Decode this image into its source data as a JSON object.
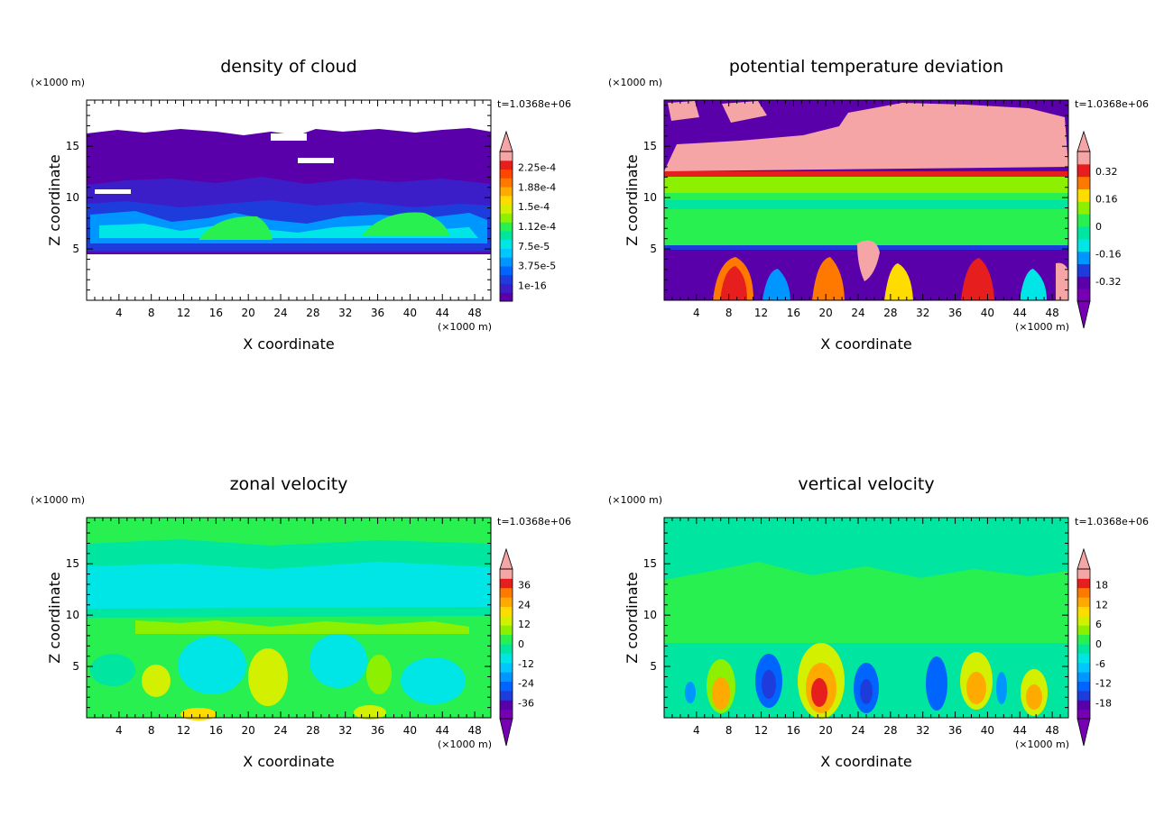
{
  "chart_data": [
    {
      "type": "heatmap",
      "title": "density of cloud",
      "xlabel": "X coordinate",
      "ylabel": "Z coordinate",
      "x_unit": "(×1000 m)",
      "z_unit": "(×1000 m)",
      "time_label": "t=1.0368e+06",
      "xlim": [
        0,
        50
      ],
      "zlim": [
        0,
        19.5
      ],
      "x_ticks": [
        "4",
        "8",
        "12",
        "16",
        "20",
        "24",
        "28",
        "32",
        "36",
        "40",
        "44",
        "48"
      ],
      "z_ticks": [
        "5",
        "10",
        "15"
      ],
      "colorbar": {
        "labels": [
          "1e-16",
          "3.75e-5",
          "7.5e-5",
          "1.12e-4",
          "1.5e-4",
          "1.88e-4",
          "2.25e-4"
        ],
        "upper_arrow": true,
        "lower_arrow": false,
        "colors": [
          "#5a00aa",
          "#3c1ec8",
          "#1e3cdc",
          "#0064ff",
          "#0096ff",
          "#00c8ff",
          "#00e6e6",
          "#00e6a0",
          "#28f050",
          "#8cf000",
          "#d2f000",
          "#ffdc00",
          "#ffaa00",
          "#ff7800",
          "#ff4600",
          "#e61e1e",
          "#f5a5a5"
        ]
      }
    },
    {
      "type": "heatmap",
      "title": "potential temperature deviation",
      "xlabel": "X coordinate",
      "ylabel": "Z coordinate",
      "x_unit": "(×1000 m)",
      "z_unit": "(×1000 m)",
      "time_label": "t=1.0368e+06",
      "xlim": [
        0,
        50
      ],
      "zlim": [
        0,
        19.5
      ],
      "x_ticks": [
        "4",
        "8",
        "12",
        "16",
        "20",
        "24",
        "28",
        "32",
        "36",
        "40",
        "44",
        "48"
      ],
      "z_ticks": [
        "5",
        "10",
        "15"
      ],
      "colorbar": {
        "labels": [
          "-0.32",
          "-0.16",
          "0",
          "0.16",
          "0.32"
        ],
        "upper_arrow": true,
        "lower_arrow": true,
        "colors": [
          "#7800b4",
          "#5a00aa",
          "#1e3cdc",
          "#0096ff",
          "#00e6e6",
          "#00e6a0",
          "#28f050",
          "#8cf000",
          "#ffdc00",
          "#ff7800",
          "#e61e1e",
          "#f5a5a5"
        ]
      }
    },
    {
      "type": "heatmap",
      "title": "zonal velocity",
      "xlabel": "X coordinate",
      "ylabel": "Z coordinate",
      "x_unit": "(×1000 m)",
      "z_unit": "(×1000 m)",
      "time_label": "t=1.0368e+06",
      "xlim": [
        0,
        50
      ],
      "zlim": [
        0,
        19.5
      ],
      "x_ticks": [
        "4",
        "8",
        "12",
        "16",
        "20",
        "24",
        "28",
        "32",
        "36",
        "40",
        "44",
        "48"
      ],
      "z_ticks": [
        "5",
        "10",
        "15"
      ],
      "colorbar": {
        "labels": [
          "-36",
          "-24",
          "-12",
          "0",
          "12",
          "24",
          "36"
        ],
        "upper_arrow": true,
        "lower_arrow": true,
        "colors": [
          "#7800b4",
          "#5a00aa",
          "#1e3cdc",
          "#0064ff",
          "#0096ff",
          "#00c8ff",
          "#00e6e6",
          "#00e6a0",
          "#28f050",
          "#8cf000",
          "#d2f000",
          "#ffdc00",
          "#ffaa00",
          "#ff7800",
          "#e61e1e",
          "#f5a5a5"
        ]
      }
    },
    {
      "type": "heatmap",
      "title": "vertical velocity",
      "xlabel": "X coordinate",
      "ylabel": "Z coordinate",
      "x_unit": "(×1000 m)",
      "z_unit": "(×1000 m)",
      "time_label": "t=1.0368e+06",
      "xlim": [
        0,
        50
      ],
      "zlim": [
        0,
        19.5
      ],
      "x_ticks": [
        "4",
        "8",
        "12",
        "16",
        "20",
        "24",
        "28",
        "32",
        "36",
        "40",
        "44",
        "48"
      ],
      "z_ticks": [
        "5",
        "10",
        "15"
      ],
      "colorbar": {
        "labels": [
          "-18",
          "-12",
          "-6",
          "0",
          "6",
          "12",
          "18"
        ],
        "upper_arrow": true,
        "lower_arrow": true,
        "colors": [
          "#7800b4",
          "#5a00aa",
          "#1e3cdc",
          "#0064ff",
          "#0096ff",
          "#00c8ff",
          "#00e6e6",
          "#00e6a0",
          "#28f050",
          "#8cf000",
          "#d2f000",
          "#ffdc00",
          "#ffaa00",
          "#ff7800",
          "#e61e1e",
          "#f5a5a5"
        ]
      }
    }
  ]
}
